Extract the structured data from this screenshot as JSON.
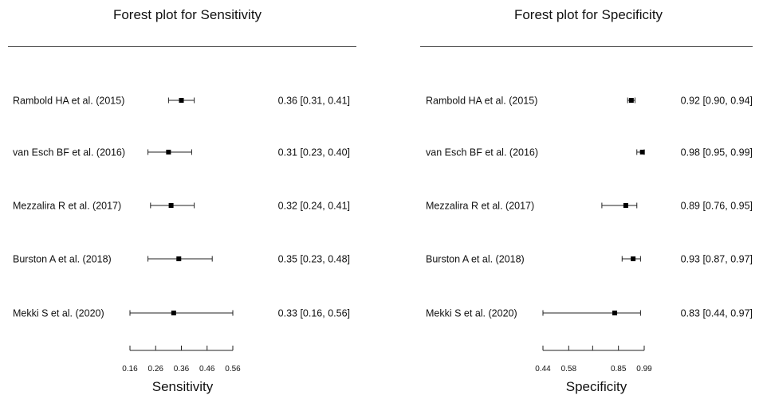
{
  "chart_data": [
    {
      "type": "forest",
      "title": "Forest plot for Sensitivity",
      "xlabel": "Sensitivity",
      "xlim": [
        0.16,
        0.56
      ],
      "xticks": [
        0.16,
        0.26,
        0.36,
        0.46,
        0.56
      ],
      "xtick_labels": [
        "0.16",
        "0.26",
        "0.36",
        "0.46",
        "0.56"
      ],
      "studies": [
        {
          "label": "Rambold HA et al. (2015)",
          "estimate": 0.36,
          "lower": 0.31,
          "upper": 0.41,
          "text": "0.36 [0.31, 0.41]"
        },
        {
          "label": "van Esch BF et al. (2016)",
          "estimate": 0.31,
          "lower": 0.23,
          "upper": 0.4,
          "text": "0.31 [0.23, 0.40]"
        },
        {
          "label": "Mezzalira R et al. (2017)",
          "estimate": 0.32,
          "lower": 0.24,
          "upper": 0.41,
          "text": "0.32 [0.24, 0.41]"
        },
        {
          "label": "Burston A et al. (2018)",
          "estimate": 0.35,
          "lower": 0.23,
          "upper": 0.48,
          "text": "0.35 [0.23, 0.48]"
        },
        {
          "label": "Mekki S et al. (2020)",
          "estimate": 0.33,
          "lower": 0.16,
          "upper": 0.56,
          "text": "0.33 [0.16, 0.56]"
        }
      ]
    },
    {
      "type": "forest",
      "title": "Forest plot for Specificity",
      "xlabel": "Specificity",
      "xlim": [
        0.44,
        0.99
      ],
      "xticks": [
        0.44,
        0.58,
        0.71,
        0.85,
        0.99
      ],
      "xtick_labels": [
        "0.44",
        "0.58",
        "",
        "0.85",
        "0.99"
      ],
      "studies": [
        {
          "label": "Rambold HA et al. (2015)",
          "estimate": 0.92,
          "lower": 0.9,
          "upper": 0.94,
          "text": "0.92 [0.90, 0.94]"
        },
        {
          "label": "van Esch BF et al. (2016)",
          "estimate": 0.98,
          "lower": 0.95,
          "upper": 0.99,
          "text": "0.98 [0.95, 0.99]"
        },
        {
          "label": "Mezzalira R et al. (2017)",
          "estimate": 0.89,
          "lower": 0.76,
          "upper": 0.95,
          "text": "0.89 [0.76, 0.95]"
        },
        {
          "label": "Burston A et al. (2018)",
          "estimate": 0.93,
          "lower": 0.87,
          "upper": 0.97,
          "text": "0.93 [0.87, 0.97]"
        },
        {
          "label": "Mekki S et al. (2020)",
          "estimate": 0.83,
          "lower": 0.44,
          "upper": 0.97,
          "text": "0.83 [0.44, 0.97]"
        }
      ]
    }
  ]
}
